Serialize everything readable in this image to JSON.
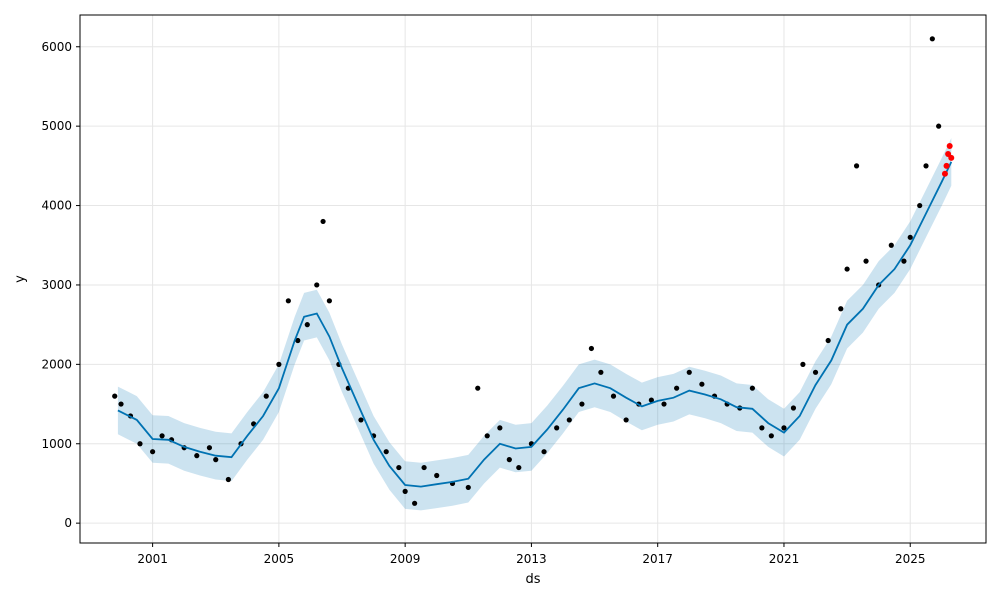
{
  "chart_data": {
    "type": "line",
    "title": "",
    "xlabel": "ds",
    "ylabel": "y",
    "x_unit": "year",
    "xlim": [
      1998.7,
      2027.4
    ],
    "ylim": [
      -250,
      6400
    ],
    "grid": true,
    "x_ticks": [
      2001,
      2005,
      2009,
      2013,
      2017,
      2021,
      2025
    ],
    "x_tick_labels": [
      "2001",
      "2005",
      "2009",
      "2013",
      "2017",
      "2021",
      "2025"
    ],
    "y_ticks": [
      0,
      1000,
      2000,
      3000,
      4000,
      5000,
      6000
    ],
    "y_tick_labels": [
      "0",
      "1000",
      "2000",
      "3000",
      "4000",
      "5000",
      "6000"
    ],
    "colors": {
      "forecast_line": "#0072B2",
      "uncertainty_band": "#0072B2",
      "observed_points": "#000000",
      "highlight_points": "#FF0000",
      "grid": "#e6e6e6"
    },
    "series": [
      {
        "role": "forecast",
        "x": [
          1999.9,
          2000.5,
          2001.0,
          2001.5,
          2002.0,
          2002.5,
          2003.0,
          2003.5,
          2004.0,
          2004.5,
          2005.0,
          2005.5,
          2005.8,
          2006.2,
          2006.6,
          2007.0,
          2007.5,
          2008.0,
          2008.5,
          2009.0,
          2009.5,
          2010.0,
          2010.5,
          2011.0,
          2011.5,
          2012.0,
          2012.5,
          2013.0,
          2013.5,
          2014.0,
          2014.5,
          2015.0,
          2015.5,
          2016.0,
          2016.5,
          2017.0,
          2017.5,
          2018.0,
          2018.5,
          2019.0,
          2019.5,
          2020.0,
          2020.5,
          2021.0,
          2021.5,
          2022.0,
          2022.5,
          2023.0,
          2023.5,
          2024.0,
          2024.5,
          2025.0,
          2025.5,
          2026.0,
          2026.3
        ],
        "y": [
          1420,
          1300,
          1060,
          1050,
          960,
          900,
          850,
          830,
          1100,
          1350,
          1700,
          2300,
          2600,
          2640,
          2350,
          1950,
          1500,
          1050,
          720,
          480,
          460,
          490,
          520,
          560,
          800,
          1000,
          940,
          960,
          1180,
          1430,
          1700,
          1760,
          1700,
          1580,
          1470,
          1540,
          1580,
          1670,
          1620,
          1560,
          1460,
          1440,
          1260,
          1140,
          1350,
          1740,
          2050,
          2500,
          2700,
          3000,
          3200,
          3500,
          3900,
          4300,
          4550
        ]
      },
      {
        "role": "uncertainty_band",
        "x": [
          1999.9,
          2000.5,
          2001.0,
          2001.5,
          2002.0,
          2002.5,
          2003.0,
          2003.5,
          2004.0,
          2004.5,
          2005.0,
          2005.5,
          2005.8,
          2006.2,
          2006.6,
          2007.0,
          2007.5,
          2008.0,
          2008.5,
          2009.0,
          2009.5,
          2010.0,
          2010.5,
          2011.0,
          2011.5,
          2012.0,
          2012.5,
          2013.0,
          2013.5,
          2014.0,
          2014.5,
          2015.0,
          2015.5,
          2016.0,
          2016.5,
          2017.0,
          2017.5,
          2018.0,
          2018.5,
          2019.0,
          2019.5,
          2020.0,
          2020.5,
          2021.0,
          2021.5,
          2022.0,
          2022.5,
          2023.0,
          2023.5,
          2024.0,
          2024.5,
          2025.0,
          2025.5,
          2026.0,
          2026.3
        ],
        "upper": [
          1720,
          1600,
          1360,
          1350,
          1260,
          1200,
          1150,
          1130,
          1400,
          1650,
          2000,
          2600,
          2900,
          2940,
          2650,
          2250,
          1800,
          1350,
          1020,
          780,
          760,
          790,
          820,
          860,
          1100,
          1300,
          1240,
          1260,
          1480,
          1730,
          2000,
          2060,
          2000,
          1880,
          1770,
          1840,
          1880,
          1970,
          1920,
          1860,
          1760,
          1740,
          1560,
          1440,
          1650,
          2040,
          2350,
          2800,
          3000,
          3300,
          3500,
          3800,
          4200,
          4600,
          4850
        ],
        "lower": [
          1120,
          1000,
          760,
          750,
          660,
          600,
          550,
          530,
          800,
          1050,
          1400,
          2000,
          2300,
          2340,
          2050,
          1650,
          1200,
          750,
          420,
          180,
          160,
          190,
          220,
          260,
          500,
          700,
          640,
          660,
          880,
          1130,
          1400,
          1460,
          1400,
          1280,
          1170,
          1240,
          1280,
          1370,
          1320,
          1260,
          1160,
          1140,
          960,
          840,
          1050,
          1440,
          1750,
          2200,
          2400,
          2700,
          2900,
          3200,
          3600,
          4000,
          4250
        ]
      },
      {
        "role": "observed",
        "x": [
          1999.8,
          2000.0,
          2000.3,
          2000.6,
          2001.0,
          2001.3,
          2001.6,
          2002.0,
          2002.4,
          2002.8,
          2003.0,
          2003.4,
          2003.8,
          2004.2,
          2004.6,
          2005.0,
          2005.3,
          2005.6,
          2005.9,
          2006.2,
          2006.4,
          2006.6,
          2006.9,
          2007.2,
          2007.6,
          2008.0,
          2008.4,
          2008.8,
          2009.0,
          2009.3,
          2009.6,
          2010.0,
          2010.5,
          2011.0,
          2011.3,
          2011.6,
          2012.0,
          2012.3,
          2012.6,
          2013.0,
          2013.4,
          2013.8,
          2014.2,
          2014.6,
          2014.9,
          2015.2,
          2015.6,
          2016.0,
          2016.4,
          2016.8,
          2017.2,
          2017.6,
          2018.0,
          2018.4,
          2018.8,
          2019.2,
          2019.6,
          2020.0,
          2020.3,
          2020.6,
          2021.0,
          2021.3,
          2021.6,
          2022.0,
          2022.4,
          2022.8,
          2023.0,
          2023.3,
          2023.6,
          2024.0,
          2024.4,
          2024.8,
          2025.0,
          2025.3,
          2025.5,
          2025.7,
          2025.9
        ],
        "y": [
          1600,
          1500,
          1350,
          1000,
          900,
          1100,
          1050,
          950,
          850,
          950,
          800,
          550,
          1000,
          1250,
          1600,
          2000,
          2800,
          2300,
          2500,
          3000,
          3800,
          2800,
          2000,
          1700,
          1300,
          1100,
          900,
          700,
          400,
          250,
          700,
          600,
          500,
          450,
          1700,
          1100,
          1200,
          800,
          700,
          1000,
          900,
          1200,
          1300,
          1500,
          2200,
          1900,
          1600,
          1300,
          1500,
          1550,
          1500,
          1700,
          1900,
          1750,
          1600,
          1500,
          1450,
          1700,
          1200,
          1100,
          1200,
          1450,
          2000,
          1900,
          2300,
          2700,
          3200,
          4500,
          3300,
          3000,
          3500,
          3300,
          3600,
          4000,
          4500,
          6100,
          5000
        ]
      },
      {
        "role": "highlight",
        "x": [
          2026.1,
          2026.15,
          2026.2,
          2026.25,
          2026.3
        ],
        "y": [
          4400,
          4500,
          4650,
          4750,
          4600
        ]
      }
    ]
  }
}
